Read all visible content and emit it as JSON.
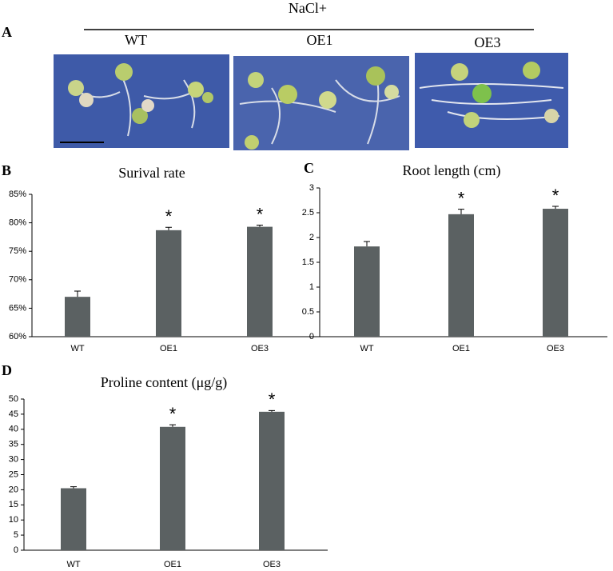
{
  "panel_a": {
    "letter": "A",
    "treatment": "NaCl+",
    "labels": [
      "WT",
      "OE1",
      "OE3"
    ]
  },
  "chart_data": [
    {
      "type": "bar",
      "panel_label": "B",
      "title": "Surival rate",
      "categories": [
        "WT",
        "OE1",
        "OE3"
      ],
      "values": [
        67,
        78.7,
        79.3
      ],
      "errors": [
        1,
        0.5,
        0.3
      ],
      "significance": [
        null,
        "*",
        "*"
      ],
      "color": "#5b6162",
      "ylim": [
        60,
        85
      ],
      "yticks": [
        {
          "value": 60,
          "label": "60%"
        },
        {
          "value": 65,
          "label": "65%"
        },
        {
          "value": 70,
          "label": "70%"
        },
        {
          "value": 75,
          "label": "75%"
        },
        {
          "value": 80,
          "label": "80%"
        },
        {
          "value": 85,
          "label": "85%"
        }
      ],
      "grid": false
    },
    {
      "type": "bar",
      "panel_label": "C",
      "title": "Root length (cm)",
      "categories": [
        "WT",
        "OE1",
        "OE3"
      ],
      "values": [
        1.82,
        2.47,
        2.58
      ],
      "errors": [
        0.1,
        0.1,
        0.05
      ],
      "significance": [
        null,
        "*",
        "*"
      ],
      "color": "#5b6162",
      "ylim": [
        0,
        3
      ],
      "yticks": [
        0,
        0.5,
        1,
        1.5,
        2,
        2.5,
        3
      ],
      "grid": false
    },
    {
      "type": "bar",
      "panel_label": "D",
      "title": "Proline content (μg/g)",
      "categories": [
        "WT",
        "OE1",
        "OE3"
      ],
      "values": [
        20.5,
        40.8,
        45.8
      ],
      "errors": [
        0.5,
        0.7,
        0.4
      ],
      "significance": [
        null,
        "*",
        "*"
      ],
      "color": "#5b6162",
      "ylim": [
        0,
        50
      ],
      "yticks": [
        0,
        5,
        10,
        15,
        20,
        25,
        30,
        35,
        40,
        45,
        50
      ],
      "grid": false
    }
  ]
}
